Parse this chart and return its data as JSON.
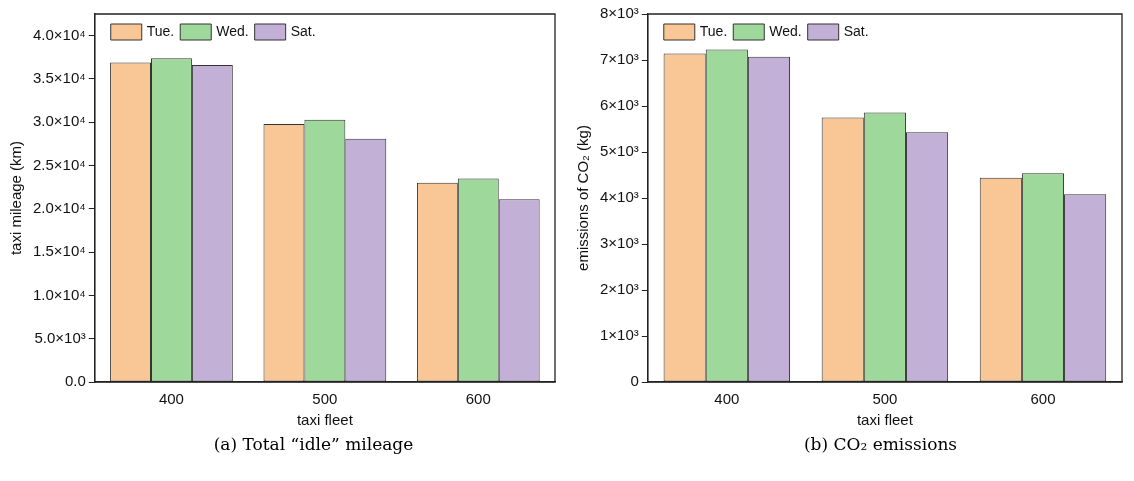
{
  "chart_data": [
    {
      "type": "bar",
      "xlabel": "taxi fleet",
      "ylabel": "taxi mileage (km)",
      "categories": [
        "400",
        "500",
        "600"
      ],
      "series": [
        {
          "name": "Tue.",
          "color": "#f9c795",
          "values": [
            36900,
            29800,
            23000
          ]
        },
        {
          "name": "Wed.",
          "color": "#9ed89b",
          "values": [
            37400,
            30300,
            23500
          ]
        },
        {
          "name": "Sat.",
          "color": "#c2b0d6",
          "values": [
            36600,
            28100,
            21100
          ]
        }
      ],
      "ylim": [
        0,
        42500
      ],
      "yticks": [
        {
          "value": 0,
          "label": "0.0"
        },
        {
          "value": 5000,
          "label": "5.0×10³"
        },
        {
          "value": 10000,
          "label": "1.0×10⁴"
        },
        {
          "value": 15000,
          "label": "1.5×10⁴"
        },
        {
          "value": 20000,
          "label": "2.0×10⁴"
        },
        {
          "value": 25000,
          "label": "2.5×10⁴"
        },
        {
          "value": 30000,
          "label": "3.0×10⁴"
        },
        {
          "value": 35000,
          "label": "3.5×10⁴"
        },
        {
          "value": 40000,
          "label": "4.0×10⁴"
        }
      ],
      "grid": false,
      "legend": "top left",
      "annotations": [
        "(a)  Total “idle” mileage"
      ]
    },
    {
      "type": "bar",
      "xlabel": "taxi fleet",
      "ylabel": "emissions of CO₂ (kg)",
      "categories": [
        "400",
        "500",
        "600"
      ],
      "series": [
        {
          "name": "Tue.",
          "color": "#f9c795",
          "values": [
            7140,
            5750,
            4440
          ]
        },
        {
          "name": "Wed.",
          "color": "#9ed89b",
          "values": [
            7230,
            5860,
            4540
          ]
        },
        {
          "name": "Sat.",
          "color": "#c2b0d6",
          "values": [
            7070,
            5430,
            4080
          ]
        }
      ],
      "ylim": [
        0,
        8000
      ],
      "yticks": [
        0,
        {
          "value": 1000,
          "label": "1×10³"
        },
        {
          "value": 2000,
          "label": "2×10³"
        },
        {
          "value": 3000,
          "label": "3×10³"
        },
        {
          "value": 4000,
          "label": "4×10³"
        },
        {
          "value": 5000,
          "label": "5×10³"
        },
        {
          "value": 6000,
          "label": "6×10³"
        },
        {
          "value": 7000,
          "label": "7×10³"
        },
        {
          "value": 8000,
          "label": "8×10³"
        }
      ],
      "grid": false,
      "legend": "top left",
      "annotations": [
        "(b)  CO₂ emissions"
      ]
    }
  ]
}
